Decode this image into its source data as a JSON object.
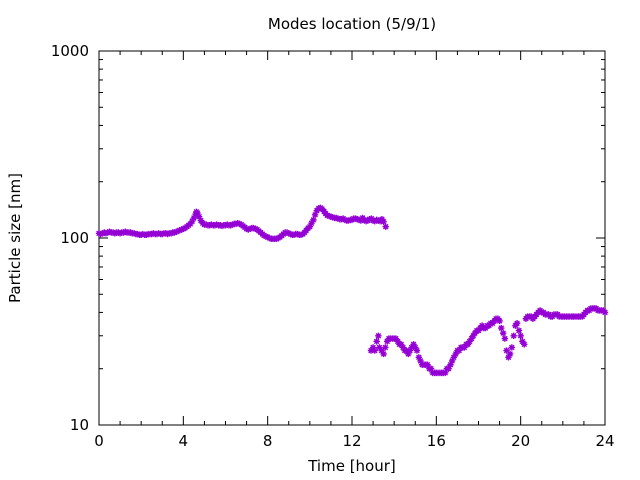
{
  "chart_data": {
    "type": "scatter",
    "title": "Modes location (5/9/1)",
    "xlabel": "Time [hour]",
    "ylabel": "Particle size [nm]",
    "xlim": [
      0,
      24
    ],
    "ylim": [
      10,
      1000
    ],
    "yscale": "log",
    "x_ticks": [
      0,
      4,
      8,
      12,
      16,
      20,
      24
    ],
    "x_tick_labels": [
      "0",
      "4",
      "8",
      "12",
      "16",
      "20",
      "24"
    ],
    "y_ticks": [
      10,
      100,
      1000
    ],
    "y_tick_labels": [
      "10",
      "100",
      "1000"
    ],
    "grid": false,
    "legend": false,
    "marker": "star",
    "series": [
      {
        "color": "#9400d3",
        "points": [
          [
            0.0,
            106
          ],
          [
            0.08,
            105
          ],
          [
            0.17,
            106
          ],
          [
            0.25,
            107
          ],
          [
            0.33,
            106
          ],
          [
            0.42,
            107
          ],
          [
            0.5,
            108
          ],
          [
            0.58,
            107
          ],
          [
            0.67,
            107
          ],
          [
            0.75,
            106
          ],
          [
            0.83,
            107
          ],
          [
            0.92,
            107
          ],
          [
            1.0,
            106
          ],
          [
            1.08,
            107
          ],
          [
            1.17,
            107
          ],
          [
            1.25,
            108
          ],
          [
            1.33,
            107
          ],
          [
            1.42,
            107
          ],
          [
            1.5,
            107
          ],
          [
            1.58,
            106
          ],
          [
            1.67,
            106
          ],
          [
            1.75,
            105
          ],
          [
            1.83,
            105
          ],
          [
            1.92,
            104
          ],
          [
            2.0,
            104
          ],
          [
            2.08,
            105
          ],
          [
            2.17,
            104
          ],
          [
            2.25,
            104
          ],
          [
            2.33,
            105
          ],
          [
            2.42,
            105
          ],
          [
            2.5,
            105
          ],
          [
            2.58,
            106
          ],
          [
            2.67,
            105
          ],
          [
            2.75,
            105
          ],
          [
            2.83,
            106
          ],
          [
            2.92,
            105
          ],
          [
            3.0,
            105
          ],
          [
            3.08,
            106
          ],
          [
            3.17,
            106
          ],
          [
            3.25,
            105
          ],
          [
            3.33,
            106
          ],
          [
            3.42,
            106
          ],
          [
            3.5,
            107
          ],
          [
            3.58,
            107
          ],
          [
            3.67,
            108
          ],
          [
            3.75,
            109
          ],
          [
            3.83,
            110
          ],
          [
            3.92,
            111
          ],
          [
            4.0,
            112
          ],
          [
            4.08,
            113
          ],
          [
            4.17,
            115
          ],
          [
            4.25,
            117
          ],
          [
            4.33,
            119
          ],
          [
            4.42,
            123
          ],
          [
            4.5,
            128
          ],
          [
            4.58,
            134
          ],
          [
            4.62,
            138
          ],
          [
            4.67,
            136
          ],
          [
            4.75,
            130
          ],
          [
            4.83,
            124
          ],
          [
            4.92,
            120
          ],
          [
            5.0,
            118
          ],
          [
            5.08,
            118
          ],
          [
            5.17,
            117
          ],
          [
            5.25,
            117
          ],
          [
            5.33,
            118
          ],
          [
            5.42,
            117
          ],
          [
            5.5,
            117
          ],
          [
            5.58,
            118
          ],
          [
            5.67,
            117
          ],
          [
            5.75,
            117
          ],
          [
            5.83,
            116
          ],
          [
            5.92,
            117
          ],
          [
            6.0,
            117
          ],
          [
            6.08,
            118
          ],
          [
            6.17,
            117
          ],
          [
            6.25,
            117
          ],
          [
            6.33,
            118
          ],
          [
            6.42,
            119
          ],
          [
            6.5,
            119
          ],
          [
            6.58,
            120
          ],
          [
            6.67,
            119
          ],
          [
            6.75,
            118
          ],
          [
            6.83,
            116
          ],
          [
            6.92,
            114
          ],
          [
            7.0,
            112
          ],
          [
            7.08,
            111
          ],
          [
            7.17,
            112
          ],
          [
            7.25,
            113
          ],
          [
            7.33,
            113
          ],
          [
            7.42,
            112
          ],
          [
            7.5,
            111
          ],
          [
            7.58,
            109
          ],
          [
            7.67,
            107
          ],
          [
            7.75,
            105
          ],
          [
            7.83,
            103
          ],
          [
            7.92,
            102
          ],
          [
            8.0,
            101
          ],
          [
            8.08,
            100
          ],
          [
            8.17,
            99
          ],
          [
            8.25,
            99
          ],
          [
            8.33,
            99
          ],
          [
            8.42,
            99
          ],
          [
            8.5,
            100
          ],
          [
            8.58,
            101
          ],
          [
            8.67,
            103
          ],
          [
            8.75,
            105
          ],
          [
            8.83,
            107
          ],
          [
            8.92,
            107
          ],
          [
            9.0,
            106
          ],
          [
            9.08,
            105
          ],
          [
            9.17,
            104
          ],
          [
            9.25,
            104
          ],
          [
            9.33,
            105
          ],
          [
            9.42,
            105
          ],
          [
            9.5,
            104
          ],
          [
            9.58,
            104
          ],
          [
            9.67,
            105
          ],
          [
            9.75,
            107
          ],
          [
            9.83,
            110
          ],
          [
            9.92,
            113
          ],
          [
            10.0,
            115
          ],
          [
            10.08,
            120
          ],
          [
            10.17,
            125
          ],
          [
            10.25,
            133
          ],
          [
            10.33,
            140
          ],
          [
            10.42,
            144
          ],
          [
            10.5,
            145
          ],
          [
            10.58,
            143
          ],
          [
            10.67,
            139
          ],
          [
            10.75,
            135
          ],
          [
            10.83,
            132
          ],
          [
            10.92,
            131
          ],
          [
            11.0,
            130
          ],
          [
            11.08,
            129
          ],
          [
            11.17,
            128
          ],
          [
            11.25,
            128
          ],
          [
            11.33,
            127
          ],
          [
            11.42,
            126
          ],
          [
            11.5,
            126
          ],
          [
            11.58,
            127
          ],
          [
            11.67,
            125
          ],
          [
            11.75,
            124
          ],
          [
            11.83,
            124
          ],
          [
            11.92,
            125
          ],
          [
            12.0,
            125
          ],
          [
            12.08,
            127
          ],
          [
            12.17,
            127
          ],
          [
            12.25,
            126
          ],
          [
            12.33,
            125
          ],
          [
            12.42,
            124
          ],
          [
            12.5,
            128
          ],
          [
            12.58,
            125
          ],
          [
            12.67,
            123
          ],
          [
            12.75,
            124
          ],
          [
            12.83,
            126
          ],
          [
            12.92,
            127
          ],
          [
            13.0,
            124
          ],
          [
            13.08,
            123
          ],
          [
            13.17,
            125
          ],
          [
            13.25,
            124
          ],
          [
            13.33,
            123
          ],
          [
            13.42,
            126
          ],
          [
            13.5,
            122
          ],
          [
            13.6,
            115
          ],
          [
            12.9,
            25
          ],
          [
            13.0,
            26
          ],
          [
            13.08,
            25
          ],
          [
            13.17,
            28
          ],
          [
            13.25,
            30
          ],
          [
            13.3,
            26
          ],
          [
            13.4,
            25
          ],
          [
            13.5,
            24
          ],
          [
            13.58,
            26
          ],
          [
            13.67,
            28
          ],
          [
            13.75,
            29
          ],
          [
            13.83,
            29
          ],
          [
            13.92,
            29
          ],
          [
            14.0,
            29
          ],
          [
            14.08,
            29
          ],
          [
            14.17,
            28
          ],
          [
            14.25,
            27
          ],
          [
            14.33,
            27
          ],
          [
            14.42,
            26
          ],
          [
            14.5,
            25
          ],
          [
            14.58,
            25
          ],
          [
            14.67,
            24
          ],
          [
            14.75,
            25
          ],
          [
            14.83,
            26
          ],
          [
            14.92,
            27
          ],
          [
            15.0,
            26
          ],
          [
            15.08,
            25
          ],
          [
            15.17,
            23
          ],
          [
            15.25,
            22
          ],
          [
            15.33,
            21
          ],
          [
            15.42,
            21
          ],
          [
            15.5,
            21
          ],
          [
            15.58,
            21
          ],
          [
            15.67,
            20
          ],
          [
            15.75,
            20
          ],
          [
            15.83,
            19
          ],
          [
            15.92,
            19
          ],
          [
            16.0,
            19
          ],
          [
            16.08,
            19
          ],
          [
            16.17,
            19
          ],
          [
            16.25,
            19
          ],
          [
            16.33,
            19
          ],
          [
            16.42,
            19
          ],
          [
            16.5,
            20
          ],
          [
            16.58,
            20
          ],
          [
            16.67,
            21
          ],
          [
            16.75,
            22
          ],
          [
            16.83,
            23
          ],
          [
            16.92,
            24
          ],
          [
            17.0,
            25
          ],
          [
            17.08,
            25
          ],
          [
            17.17,
            26
          ],
          [
            17.25,
            26
          ],
          [
            17.33,
            26
          ],
          [
            17.42,
            27
          ],
          [
            17.5,
            27
          ],
          [
            17.58,
            28
          ],
          [
            17.67,
            29
          ],
          [
            17.75,
            30
          ],
          [
            17.83,
            31
          ],
          [
            17.92,
            32
          ],
          [
            18.0,
            32
          ],
          [
            18.08,
            33
          ],
          [
            18.17,
            34
          ],
          [
            18.25,
            33
          ],
          [
            18.33,
            33
          ],
          [
            18.42,
            34
          ],
          [
            18.5,
            34
          ],
          [
            18.58,
            35
          ],
          [
            18.67,
            35
          ],
          [
            18.75,
            36
          ],
          [
            18.83,
            37
          ],
          [
            18.92,
            37
          ],
          [
            19.0,
            36
          ],
          [
            19.08,
            33
          ],
          [
            19.17,
            31
          ],
          [
            19.25,
            29
          ],
          [
            19.33,
            25
          ],
          [
            19.42,
            23
          ],
          [
            19.5,
            24
          ],
          [
            19.58,
            26
          ],
          [
            19.67,
            30
          ],
          [
            19.75,
            34
          ],
          [
            19.83,
            35
          ],
          [
            19.92,
            32
          ],
          [
            20.0,
            30
          ],
          [
            20.08,
            28
          ],
          [
            20.17,
            27
          ],
          [
            20.25,
            37
          ],
          [
            20.33,
            38
          ],
          [
            20.42,
            38
          ],
          [
            20.5,
            38
          ],
          [
            20.58,
            37
          ],
          [
            20.67,
            38
          ],
          [
            20.75,
            39
          ],
          [
            20.83,
            40
          ],
          [
            20.92,
            41
          ],
          [
            21.0,
            40
          ],
          [
            21.08,
            40
          ],
          [
            21.17,
            39
          ],
          [
            21.25,
            39
          ],
          [
            21.33,
            39
          ],
          [
            21.42,
            38
          ],
          [
            21.5,
            38
          ],
          [
            21.58,
            39
          ],
          [
            21.67,
            39
          ],
          [
            21.75,
            39
          ],
          [
            21.83,
            38
          ],
          [
            21.92,
            38
          ],
          [
            22.0,
            38
          ],
          [
            22.08,
            38
          ],
          [
            22.17,
            38
          ],
          [
            22.25,
            38
          ],
          [
            22.33,
            38
          ],
          [
            22.42,
            38
          ],
          [
            22.5,
            38
          ],
          [
            22.58,
            38
          ],
          [
            22.67,
            38
          ],
          [
            22.75,
            38
          ],
          [
            22.83,
            38
          ],
          [
            22.92,
            38
          ],
          [
            23.0,
            39
          ],
          [
            23.08,
            40
          ],
          [
            23.17,
            41
          ],
          [
            23.25,
            41
          ],
          [
            23.33,
            42
          ],
          [
            23.42,
            42
          ],
          [
            23.5,
            42
          ],
          [
            23.58,
            42
          ],
          [
            23.67,
            41
          ],
          [
            23.75,
            41
          ],
          [
            23.83,
            41
          ],
          [
            23.92,
            41
          ],
          [
            24.0,
            40
          ]
        ]
      }
    ]
  }
}
